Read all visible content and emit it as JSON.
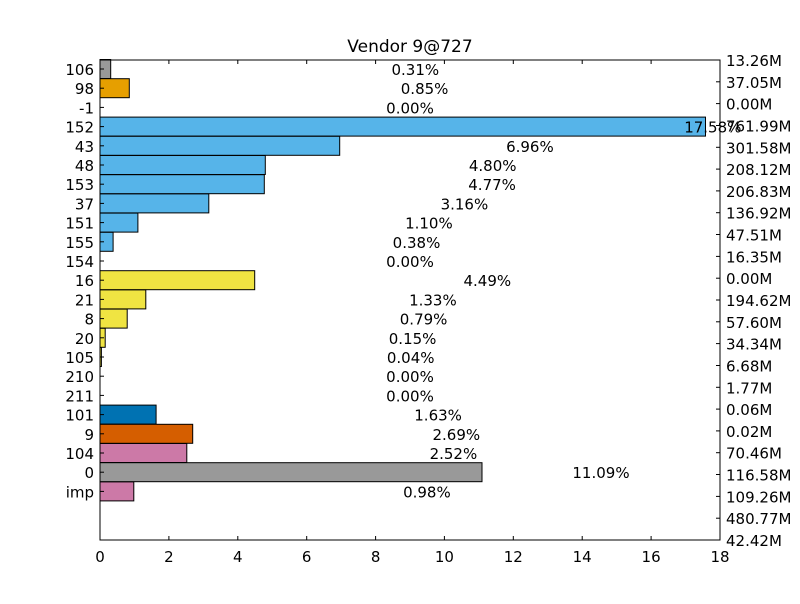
{
  "chart_data": {
    "type": "bar",
    "orientation": "horizontal",
    "title": "Vendor 9@727",
    "xlabel": "",
    "ylabel": "",
    "xlim": [
      0,
      18
    ],
    "xticks": [
      "0",
      "2",
      "4",
      "6",
      "8",
      "10",
      "12",
      "14",
      "16",
      "18"
    ],
    "grid": false,
    "categories": [
      "106",
      "98",
      "-1",
      "152",
      "43",
      "48",
      "153",
      "37",
      "151",
      "155",
      "154",
      "16",
      "21",
      "8",
      "20",
      "105",
      "210",
      "211",
      "101",
      "9",
      "104",
      "0",
      "imp"
    ],
    "values": [
      0.31,
      0.85,
      0.0,
      17.58,
      6.96,
      4.8,
      4.77,
      3.16,
      1.1,
      0.38,
      0.0,
      4.49,
      1.33,
      0.79,
      0.15,
      0.04,
      0.0,
      0.0,
      1.63,
      2.69,
      2.52,
      11.09,
      0.98
    ],
    "value_labels": [
      "0.31%",
      "0.85%",
      "0.00%",
      "17.58%",
      "6.96%",
      "4.80%",
      "4.77%",
      "3.16%",
      "1.10%",
      "0.38%",
      "0.00%",
      "4.49%",
      "1.33%",
      "0.79%",
      "0.15%",
      "0.04%",
      "0.00%",
      "0.00%",
      "1.63%",
      "2.69%",
      "2.52%",
      "11.09%",
      "0.98%"
    ],
    "bar_colors": [
      "#999999",
      "#E69F00",
      "#56B4E9",
      "#56B4E9",
      "#56B4E9",
      "#56B4E9",
      "#56B4E9",
      "#56B4E9",
      "#56B4E9",
      "#56B4E9",
      "#56B4E9",
      "#F0E442",
      "#F0E442",
      "#F0E442",
      "#F0E442",
      "#F0E442",
      "#F0E442",
      "#F0E442",
      "#0072B2",
      "#D55E00",
      "#CC79A7",
      "#999999",
      "#CC79A7"
    ],
    "right_labels": [
      "13.26M",
      "37.05M",
      "0.00M",
      "761.99M",
      "301.58M",
      "208.12M",
      "206.83M",
      "136.92M",
      "47.51M",
      "16.35M",
      "0.00M",
      "194.62M",
      "57.60M",
      "34.34M",
      "6.68M",
      "1.77M",
      "0.06M",
      "0.02M",
      "70.46M",
      "116.58M",
      "109.26M",
      "480.77M",
      "42.42M"
    ]
  }
}
